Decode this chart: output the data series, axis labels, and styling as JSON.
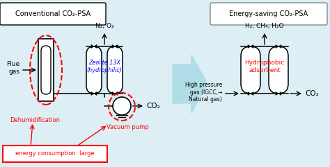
{
  "bg_color": "#ddeef5",
  "left_title": "Conventional CO₂-PSA",
  "right_title": "Energy-saving CO₂-PSA",
  "n2o2": "N₂, O₂",
  "flue_gas": "Flue\ngas",
  "left_co2": "CO₂",
  "zeolite": "Zeolite 13X\n(hydrophilic)",
  "dehum": "Dehumidification",
  "pump": "Vacuum pump",
  "energy": "energy consumption: large",
  "right_gases": "H₂, CH₄, H₂O",
  "hydro": "Hydrophobic\nadsorbent",
  "hp_gas": "High pressure\ngas (IGCC,→\nNatural gas)",
  "right_co2": "CO₂"
}
